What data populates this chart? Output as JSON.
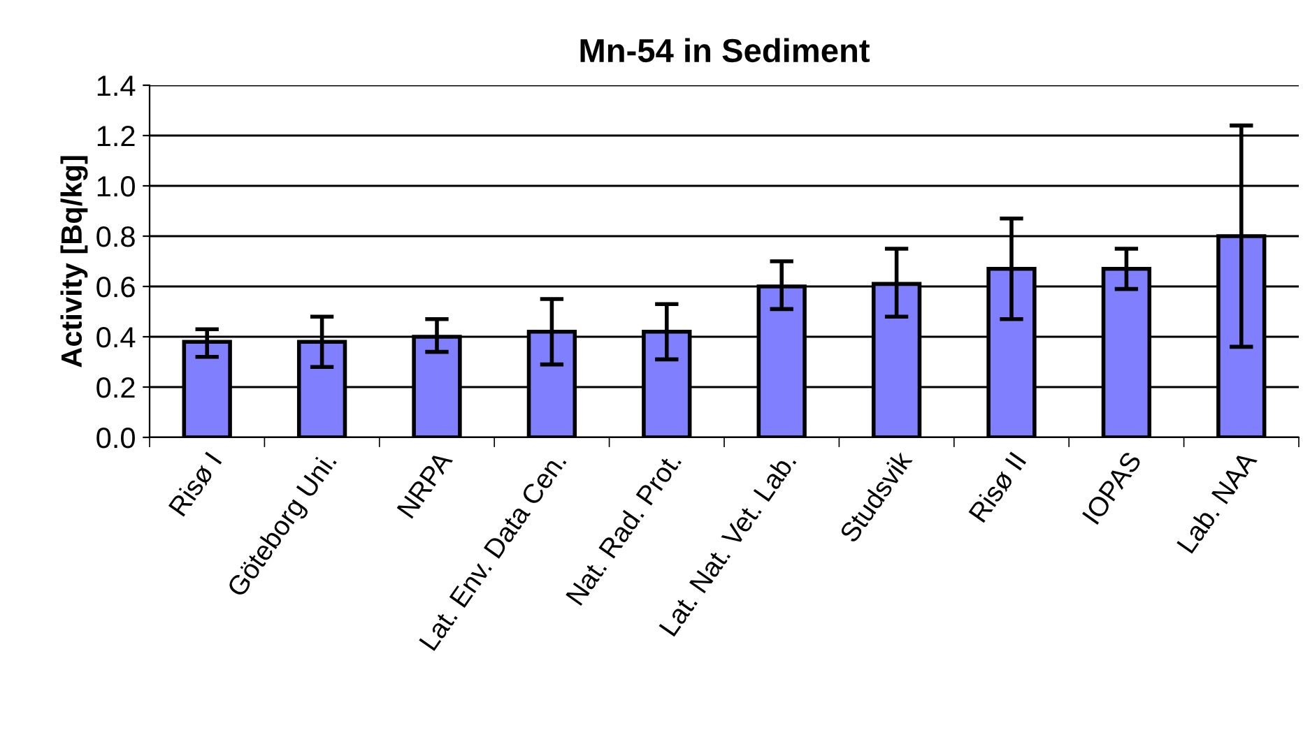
{
  "chart_data": {
    "type": "bar",
    "title": "Mn-54 in Sediment",
    "ylabel": "Activity [Bq/kg]",
    "categories": [
      "Risø I",
      "Göteborg Uni.",
      "NRPA",
      "Lat. Env. Data Cen.",
      "Nat. Rad. Prot.",
      "Lat. Nat. Vet. Lab.",
      "Studsvik",
      "Risø II",
      "IOPAS",
      "Lab. NAA"
    ],
    "values": [
      0.38,
      0.38,
      0.4,
      0.42,
      0.42,
      0.6,
      0.61,
      0.67,
      0.67,
      0.8
    ],
    "errors": [
      [
        0.32,
        0.43
      ],
      [
        0.28,
        0.48
      ],
      [
        0.34,
        0.47
      ],
      [
        0.29,
        0.55
      ],
      [
        0.31,
        0.53
      ],
      [
        0.51,
        0.7
      ],
      [
        0.48,
        0.75
      ],
      [
        0.47,
        0.87
      ],
      [
        0.59,
        0.75
      ],
      [
        0.36,
        1.24
      ]
    ],
    "color": "#8080ff",
    "ylim": [
      0,
      1.4
    ],
    "yticks": [
      {
        "value": 0,
        "label": "0.0"
      },
      {
        "value": 0.2,
        "label": "0.2"
      },
      {
        "value": 0.4,
        "label": "0.4"
      },
      {
        "value": 0.6,
        "label": "0.6"
      },
      {
        "value": 0.8,
        "label": "0.8"
      },
      {
        "value": 1.0,
        "label": "1.0"
      },
      {
        "value": 1.2,
        "label": "1.2"
      },
      {
        "value": 1.4,
        "label": "1.4"
      }
    ],
    "grid": "y"
  }
}
